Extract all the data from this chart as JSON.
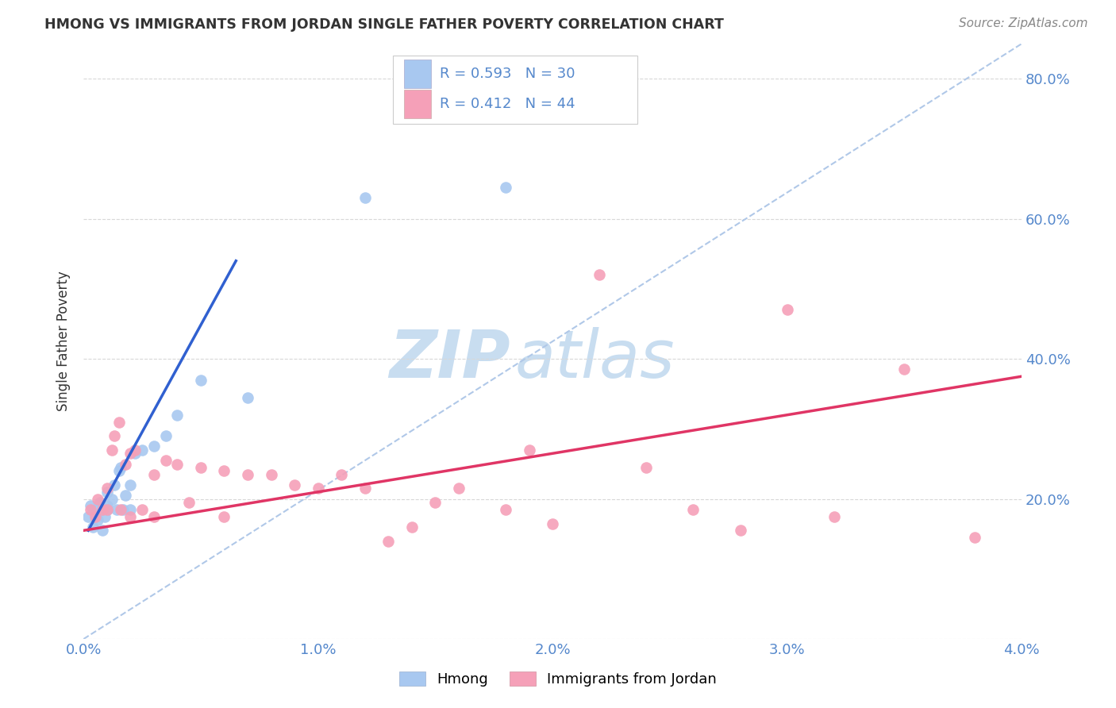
{
  "title": "HMONG VS IMMIGRANTS FROM JORDAN SINGLE FATHER POVERTY CORRELATION CHART",
  "source": "Source: ZipAtlas.com",
  "ylabel": "Single Father Poverty",
  "xlim": [
    0.0,
    0.04
  ],
  "ylim": [
    0.0,
    0.85
  ],
  "legend_label1": "Hmong",
  "legend_label2": "Immigrants from Jordan",
  "r1": 0.593,
  "n1": 30,
  "r2": 0.412,
  "n2": 44,
  "color1": "#a8c8f0",
  "color2": "#f5a0b8",
  "line_color1": "#3060d0",
  "line_color2": "#e03565",
  "diag_color": "#b0c8e8",
  "background_color": "#ffffff",
  "watermark_zip": "ZIP",
  "watermark_atlas": "atlas",
  "watermark_color_zip": "#c8ddf0",
  "watermark_color_atlas": "#c8ddf0",
  "grid_color": "#d8d8d8",
  "tick_color": "#5588cc",
  "text_color": "#333333",
  "source_color": "#888888",
  "x_tick_vals": [
    0.0,
    0.01,
    0.02,
    0.03,
    0.04
  ],
  "x_tick_labels": [
    "0.0%",
    "1.0%",
    "2.0%",
    "3.0%",
    "4.0%"
  ],
  "y_tick_vals": [
    0.0,
    0.2,
    0.4,
    0.6,
    0.8
  ],
  "y_tick_labels": [
    "",
    "20.0%",
    "40.0%",
    "60.0%",
    "80.0%"
  ],
  "hmong_x": [
    0.0002,
    0.0003,
    0.0004,
    0.0005,
    0.0006,
    0.0007,
    0.0008,
    0.0008,
    0.0009,
    0.001,
    0.001,
    0.001,
    0.0012,
    0.0013,
    0.0014,
    0.0015,
    0.0016,
    0.0017,
    0.0018,
    0.002,
    0.002,
    0.0022,
    0.0025,
    0.003,
    0.0035,
    0.004,
    0.005,
    0.007,
    0.012,
    0.018
  ],
  "hmong_y": [
    0.175,
    0.19,
    0.16,
    0.185,
    0.17,
    0.195,
    0.155,
    0.185,
    0.175,
    0.21,
    0.19,
    0.185,
    0.2,
    0.22,
    0.185,
    0.24,
    0.245,
    0.185,
    0.205,
    0.22,
    0.185,
    0.265,
    0.27,
    0.275,
    0.29,
    0.32,
    0.37,
    0.345,
    0.63,
    0.645
  ],
  "jordan_x": [
    0.0003,
    0.0005,
    0.0006,
    0.0008,
    0.001,
    0.001,
    0.0012,
    0.0013,
    0.0015,
    0.0016,
    0.0018,
    0.002,
    0.002,
    0.0022,
    0.0025,
    0.003,
    0.003,
    0.0035,
    0.004,
    0.0045,
    0.005,
    0.006,
    0.006,
    0.007,
    0.008,
    0.009,
    0.01,
    0.011,
    0.012,
    0.013,
    0.014,
    0.015,
    0.016,
    0.018,
    0.019,
    0.02,
    0.022,
    0.024,
    0.026,
    0.028,
    0.03,
    0.032,
    0.035,
    0.038
  ],
  "jordan_y": [
    0.185,
    0.175,
    0.2,
    0.185,
    0.215,
    0.185,
    0.27,
    0.29,
    0.31,
    0.185,
    0.25,
    0.265,
    0.175,
    0.27,
    0.185,
    0.235,
    0.175,
    0.255,
    0.25,
    0.195,
    0.245,
    0.24,
    0.175,
    0.235,
    0.235,
    0.22,
    0.215,
    0.235,
    0.215,
    0.14,
    0.16,
    0.195,
    0.215,
    0.185,
    0.27,
    0.165,
    0.52,
    0.245,
    0.185,
    0.155,
    0.47,
    0.175,
    0.385,
    0.145
  ],
  "hmong_line_x": [
    0.0002,
    0.0065
  ],
  "hmong_line_y": [
    0.155,
    0.54
  ],
  "jordan_line_x": [
    0.0,
    0.04
  ],
  "jordan_line_y": [
    0.155,
    0.375
  ],
  "diag_line_x": [
    0.0,
    0.04
  ],
  "diag_line_y": [
    0.0,
    0.85
  ]
}
